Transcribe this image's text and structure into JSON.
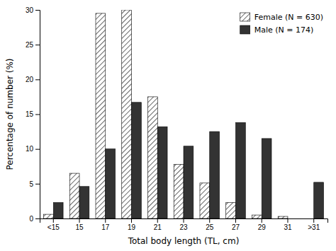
{
  "chart_data": {
    "type": "bar",
    "categories": [
      "<15",
      "15",
      "17",
      "19",
      "21",
      "23",
      "25",
      "27",
      "29",
      "31",
      ">31"
    ],
    "series": [
      {
        "name": "Female (N = 630)",
        "color": "white",
        "values": [
          0.6,
          6.5,
          29.5,
          30.0,
          17.5,
          7.8,
          5.1,
          2.3,
          0.5,
          0.3,
          0.0
        ]
      },
      {
        "name": "Male (N = 174)",
        "color": "#333333",
        "values": [
          2.3,
          4.6,
          10.0,
          16.7,
          13.2,
          10.4,
          12.5,
          13.8,
          11.5,
          0.0,
          5.2
        ]
      }
    ],
    "xlabel": "Total body length  (TL, cm)",
    "ylabel": "Percentage of number (%)",
    "ylim": [
      0,
      30
    ],
    "yticks": [
      0,
      5,
      10,
      15,
      20,
      25,
      30
    ],
    "legend": "upper right",
    "grid": false
  }
}
